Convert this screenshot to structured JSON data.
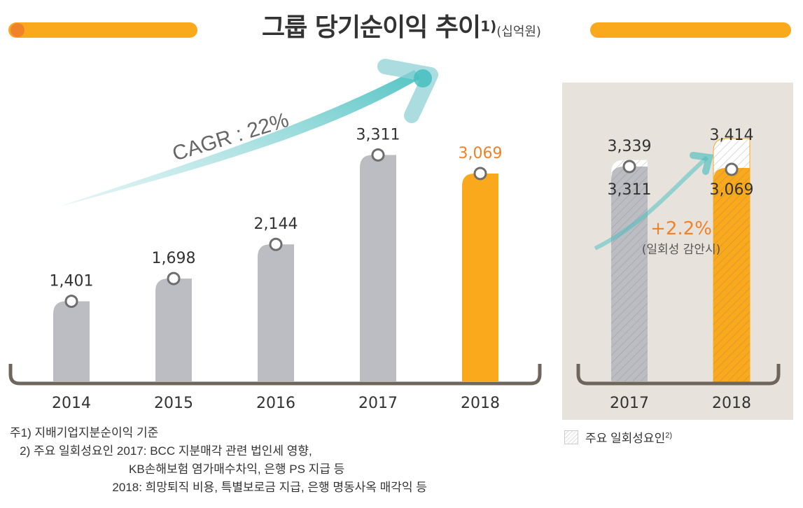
{
  "title": {
    "main": "그룹 당기순이익 추이",
    "sup": "1)",
    "unit": "(십억원)"
  },
  "colors": {
    "gray": "#bcbdc2",
    "orange": "#f9a91b",
    "orange_text": "#f0822a",
    "teal": "#3fbdbd",
    "panel": "#e8e2dd",
    "axis": "#6e655c"
  },
  "chart_data": [
    {
      "type": "bar",
      "categories": [
        "2014",
        "2015",
        "2016",
        "2017",
        "2018"
      ],
      "values": [
        1401,
        1698,
        2144,
        3311,
        3069
      ],
      "data_labels": [
        "1,401",
        "1,698",
        "2,144",
        "3,311",
        "3,069"
      ],
      "highlight": "2018",
      "annotation": "CAGR : 22%"
    },
    {
      "type": "bar",
      "categories": [
        "2017",
        "2018"
      ],
      "series": [
        {
          "name": "주요 일회성요인",
          "values": [
            3339,
            3414
          ],
          "labels": [
            "3,339",
            "3,414"
          ],
          "pattern": "hatched"
        },
        {
          "values": [
            3311,
            3069
          ],
          "labels": [
            "3,311",
            "3,069"
          ]
        }
      ],
      "annotation": "+2.2%",
      "annotation_sub": "(일회성 감안시)"
    }
  ],
  "legend": {
    "label": "주요 일회성요인",
    "sup": "2)"
  },
  "notes": [
    "주1) 지배기업지분순이익 기준",
    "   2) 주요 일회성요인 2017: BCC 지분매각 관련 법인세 영향,",
    "                                    KB손해보험 염가매수차익, 은행 PS 지급 등",
    "                               2018: 희망퇴직 비용, 특별보로금 지급, 은행 명동사옥 매각익 등"
  ]
}
